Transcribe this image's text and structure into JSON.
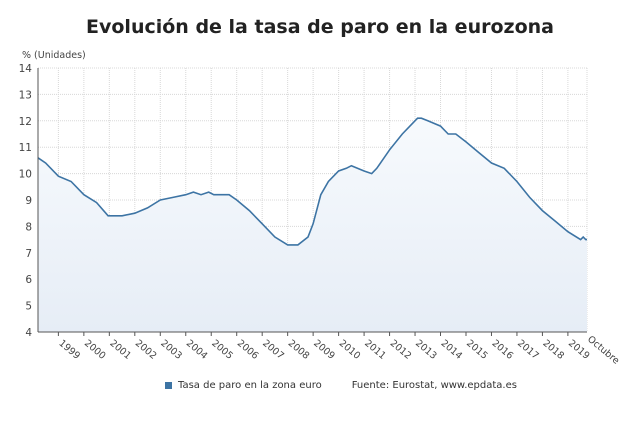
{
  "title": "Evolución de la tasa de paro en la eurozona",
  "chart_data": {
    "type": "area",
    "title": "Evolución de la tasa de paro en la eurozona",
    "ylabel": "% (Unidades)",
    "xlabel": "",
    "ylim": [
      4,
      14
    ],
    "yticks": [
      4,
      5,
      6,
      7,
      8,
      9,
      10,
      11,
      12,
      13,
      14
    ],
    "xlim": [
      1998.2,
      2019.75
    ],
    "xtick_labels": [
      "1999",
      "2000",
      "2001",
      "2002",
      "2003",
      "2004",
      "2005",
      "2006",
      "2007",
      "2008",
      "2009",
      "2010",
      "2011",
      "2012",
      "2013",
      "2014",
      "2015",
      "2016",
      "2017",
      "2018",
      "2019",
      "Octubre"
    ],
    "grid": true,
    "legend_position": "bottom",
    "color": "#3d74a4",
    "series": [
      {
        "name": "Tasa de paro en la zona euro",
        "x": [
          1998.2,
          1998.5,
          1999.0,
          1999.5,
          2000.0,
          2000.5,
          2000.95,
          2001.5,
          2002.0,
          2002.5,
          2003.0,
          2003.5,
          2004.0,
          2004.3,
          2004.6,
          2004.9,
          2005.1,
          2005.7,
          2006.0,
          2006.5,
          2007.0,
          2007.5,
          2008.0,
          2008.4,
          2008.8,
          2009.0,
          2009.3,
          2009.6,
          2010.0,
          2010.3,
          2010.5,
          2011.0,
          2011.3,
          2011.5,
          2012.0,
          2012.5,
          2013.0,
          2013.1,
          2013.25,
          2013.5,
          2014.0,
          2014.3,
          2014.6,
          2015.0,
          2015.5,
          2016.0,
          2016.5,
          2017.0,
          2017.5,
          2018.0,
          2018.5,
          2019.0,
          2019.5,
          2019.6,
          2019.7,
          2019.75
        ],
        "y": [
          10.6,
          10.4,
          9.9,
          9.7,
          9.2,
          8.9,
          8.4,
          8.4,
          8.5,
          8.7,
          9.0,
          9.1,
          9.2,
          9.3,
          9.2,
          9.3,
          9.2,
          9.2,
          9.0,
          8.6,
          8.1,
          7.6,
          7.3,
          7.3,
          7.6,
          8.1,
          9.2,
          9.7,
          10.1,
          10.2,
          10.3,
          10.1,
          10.0,
          10.2,
          10.9,
          11.5,
          12.0,
          12.1,
          12.1,
          12.0,
          11.8,
          11.5,
          11.5,
          11.2,
          10.8,
          10.4,
          10.2,
          9.7,
          9.1,
          8.6,
          8.2,
          7.8,
          7.5,
          7.6,
          7.5,
          7.5
        ]
      }
    ]
  },
  "legend": {
    "label": "Tasa de paro en la zona euro",
    "source": "Fuente: Eurostat, www.epdata.es"
  }
}
